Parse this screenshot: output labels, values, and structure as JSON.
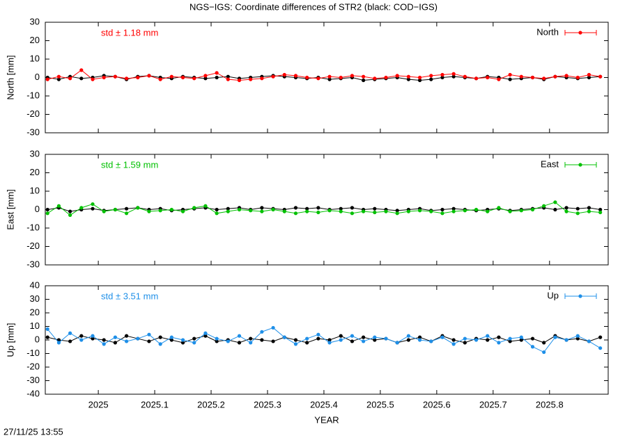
{
  "timestamp": "27/11/25 13:55",
  "chart_data": [
    {
      "type": "line",
      "title": "NGS−IGS: Coordinate differences of STR2 (black: COD−IGS)",
      "ylabel": "North [mm]",
      "annotation": "std ± 1.18 mm",
      "legend": "upper right",
      "grid": false,
      "xlim": [
        2024.906,
        2025.904
      ],
      "xticks": [
        2025,
        2025.1,
        2025.2,
        2025.3,
        2025.4,
        2025.5,
        2025.6,
        2025.7,
        2025.8
      ],
      "ylim": [
        -30,
        30
      ],
      "yticks": [
        -30,
        -20,
        -10,
        0,
        10,
        20,
        30
      ],
      "x": [
        2024.91,
        2024.93,
        2024.95,
        2024.97,
        2024.99,
        2025.01,
        2025.03,
        2025.05,
        2025.07,
        2025.09,
        2025.11,
        2025.13,
        2025.15,
        2025.17,
        2025.19,
        2025.21,
        2025.23,
        2025.25,
        2025.27,
        2025.29,
        2025.31,
        2025.33,
        2025.35,
        2025.37,
        2025.39,
        2025.41,
        2025.43,
        2025.45,
        2025.47,
        2025.49,
        2025.51,
        2025.53,
        2025.55,
        2025.57,
        2025.59,
        2025.61,
        2025.63,
        2025.65,
        2025.67,
        2025.69,
        2025.71,
        2025.73,
        2025.75,
        2025.77,
        2025.79,
        2025.81,
        2025.83,
        2025.85,
        2025.87,
        2025.89
      ],
      "series": [
        {
          "color": "#000000",
          "values": [
            0,
            -1,
            0.5,
            -0.5,
            0,
            1,
            0.5,
            -1,
            0.5,
            1,
            0,
            -0.5,
            0.5,
            0,
            -0.5,
            0,
            0.5,
            -0.5,
            0,
            0.5,
            1,
            0.5,
            0,
            -0.5,
            0,
            -1,
            -0.5,
            0,
            -1.5,
            -1,
            -0.5,
            0,
            -1,
            -1.5,
            -1,
            0,
            0.5,
            0,
            -0.5,
            0.5,
            0,
            -1,
            -0.5,
            0,
            -1,
            0.5,
            0,
            -0.5,
            0,
            0.5
          ]
        },
        {
          "name": "North",
          "color": "#ff0000",
          "values": [
            -1,
            0.5,
            -0.5,
            4,
            -1,
            0,
            0.5,
            -0.5,
            0,
            1,
            -1,
            0.5,
            0,
            -0.5,
            1,
            2.5,
            -1,
            -1.5,
            -1,
            -0.5,
            0.5,
            1.5,
            1,
            0,
            -0.5,
            0.5,
            0,
            1,
            0.5,
            -0.5,
            0,
            1,
            0.5,
            0,
            1,
            1.5,
            2,
            0.5,
            -0.5,
            0,
            -1,
            1.5,
            0.5,
            0,
            -0.5,
            0.5,
            1,
            0,
            1.5,
            0.5
          ]
        }
      ]
    },
    {
      "type": "line",
      "ylabel": "East [mm]",
      "annotation": "std ± 1.59 mm",
      "legend": "upper right",
      "grid": false,
      "xlim": [
        2024.906,
        2025.904
      ],
      "xticks": [
        2025,
        2025.1,
        2025.2,
        2025.3,
        2025.4,
        2025.5,
        2025.6,
        2025.7,
        2025.8
      ],
      "ylim": [
        -30,
        30
      ],
      "yticks": [
        -30,
        -20,
        -10,
        0,
        10,
        20,
        30
      ],
      "x": [
        2024.91,
        2024.93,
        2024.95,
        2024.97,
        2024.99,
        2025.01,
        2025.03,
        2025.05,
        2025.07,
        2025.09,
        2025.11,
        2025.13,
        2025.15,
        2025.17,
        2025.19,
        2025.21,
        2025.23,
        2025.25,
        2025.27,
        2025.29,
        2025.31,
        2025.33,
        2025.35,
        2025.37,
        2025.39,
        2025.41,
        2025.43,
        2025.45,
        2025.47,
        2025.49,
        2025.51,
        2025.53,
        2025.55,
        2025.57,
        2025.59,
        2025.61,
        2025.63,
        2025.65,
        2025.67,
        2025.69,
        2025.71,
        2025.73,
        2025.75,
        2025.77,
        2025.79,
        2025.81,
        2025.83,
        2025.85,
        2025.87,
        2025.89
      ],
      "series": [
        {
          "color": "#000000",
          "values": [
            0,
            1,
            -1,
            0,
            0.5,
            -0.5,
            0,
            0.5,
            1,
            0,
            0.5,
            -0.5,
            0,
            0.5,
            1,
            0,
            0.5,
            1,
            0,
            1,
            0.5,
            0,
            1,
            0.5,
            1,
            0,
            0.5,
            1,
            0,
            0.5,
            0,
            -0.5,
            0,
            0.5,
            -0.5,
            0,
            0.5,
            0,
            -0.5,
            0,
            0.5,
            -0.5,
            0,
            0.5,
            1,
            0,
            1,
            0.5,
            1,
            0
          ]
        },
        {
          "name": "East",
          "color": "#00c000",
          "values": [
            -2,
            2,
            -3,
            1,
            3,
            -1,
            0,
            -2,
            1,
            -1,
            -0.5,
            0,
            -1,
            1,
            2,
            -2,
            -1,
            0,
            -0.5,
            -1,
            0,
            -1,
            -2,
            -1,
            -1.5,
            -0.5,
            -1,
            -2,
            -1,
            -1.5,
            -1,
            -2,
            -1,
            -0.5,
            -1,
            -2,
            -1,
            -0.5,
            0,
            -1,
            1,
            -1,
            -0.5,
            0,
            2,
            4,
            -1,
            -2,
            -1,
            -1.5
          ]
        }
      ]
    },
    {
      "type": "line",
      "ylabel": "Up [mm]",
      "xlabel": "YEAR",
      "annotation": "std ± 3.51 mm",
      "legend": "upper right",
      "grid": false,
      "xlim": [
        2024.906,
        2025.904
      ],
      "xticks": [
        2025,
        2025.1,
        2025.2,
        2025.3,
        2025.4,
        2025.5,
        2025.6,
        2025.7,
        2025.8
      ],
      "ylim": [
        -40,
        40
      ],
      "yticks": [
        -40,
        -30,
        -20,
        -10,
        0,
        10,
        20,
        30,
        40
      ],
      "x": [
        2024.91,
        2024.93,
        2024.95,
        2024.97,
        2024.99,
        2025.01,
        2025.03,
        2025.05,
        2025.07,
        2025.09,
        2025.11,
        2025.13,
        2025.15,
        2025.17,
        2025.19,
        2025.21,
        2025.23,
        2025.25,
        2025.27,
        2025.29,
        2025.31,
        2025.33,
        2025.35,
        2025.37,
        2025.39,
        2025.41,
        2025.43,
        2025.45,
        2025.47,
        2025.49,
        2025.51,
        2025.53,
        2025.55,
        2025.57,
        2025.59,
        2025.61,
        2025.63,
        2025.65,
        2025.67,
        2025.69,
        2025.71,
        2025.73,
        2025.75,
        2025.77,
        2025.79,
        2025.81,
        2025.83,
        2025.85,
        2025.87,
        2025.89
      ],
      "series": [
        {
          "color": "#000000",
          "values": [
            2,
            0,
            -1,
            3,
            1,
            0,
            -2,
            3,
            1,
            -1,
            2,
            0,
            -2,
            1,
            3,
            -1,
            0,
            -2,
            1,
            0,
            -1,
            2,
            0,
            -2,
            1,
            0,
            3,
            -1,
            2,
            0,
            1,
            -2,
            0,
            2,
            -1,
            3,
            0,
            -2,
            1,
            0,
            2,
            -1,
            0,
            1,
            -2,
            3,
            0,
            1,
            -1,
            2
          ]
        },
        {
          "name": "Up",
          "color": "#1e8fe8",
          "values": [
            8,
            -2,
            5,
            0,
            3,
            -3,
            2,
            -1,
            1,
            4,
            -3,
            2,
            0,
            -2,
            5,
            1,
            -1,
            3,
            -2,
            6,
            9,
            2,
            -3,
            1,
            4,
            -2,
            0,
            3,
            -1,
            2,
            1,
            -2,
            3,
            0,
            -1,
            2,
            -3,
            1,
            0,
            3,
            -2,
            1,
            2,
            -5,
            -9,
            2,
            0,
            3,
            -1,
            -6
          ]
        }
      ]
    }
  ]
}
